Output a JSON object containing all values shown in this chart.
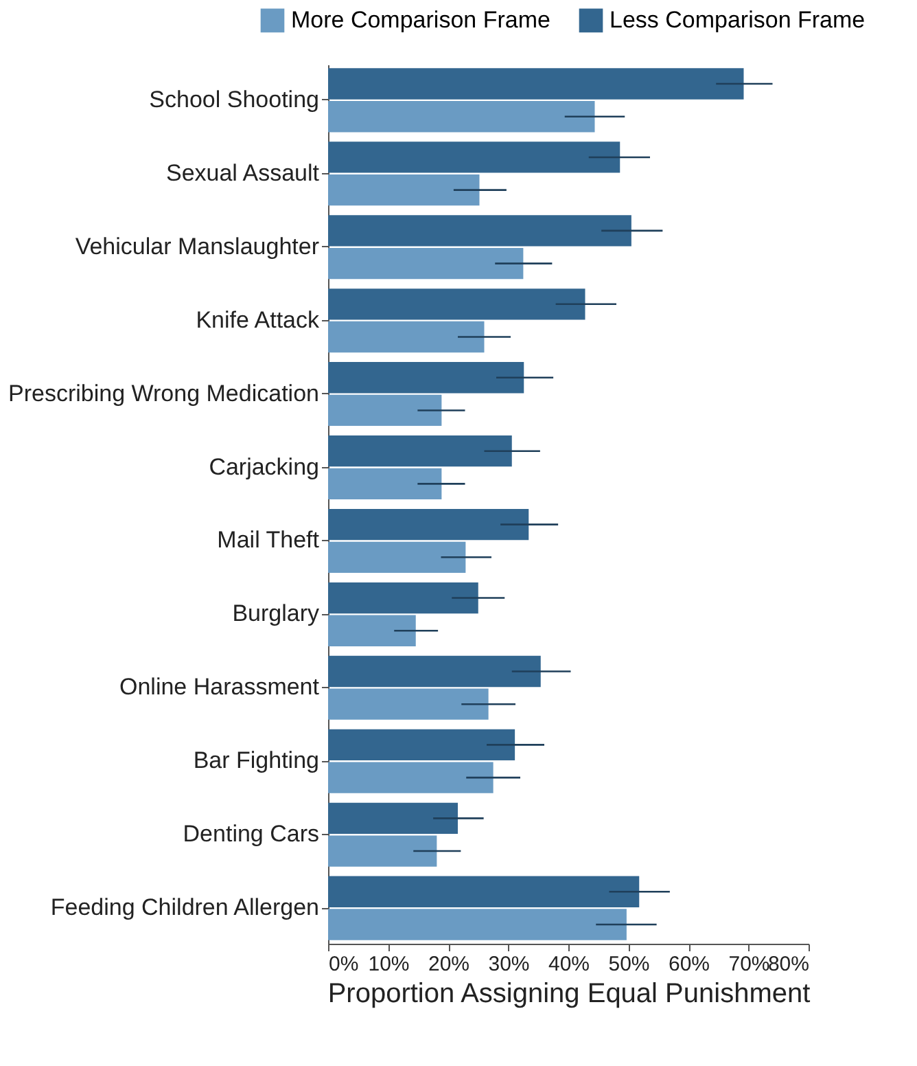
{
  "chart_data": {
    "type": "bar",
    "orientation": "horizontal",
    "xlabel": "Proportion Assigning Equal Punishment",
    "categories": [
      "School Shooting",
      "Sexual Assault",
      "Vehicular Manslaughter",
      "Knife Attack",
      "Prescribing Wrong Medication",
      "Carjacking",
      "Mail Theft",
      "Burglary",
      "Online Harassment",
      "Bar Fighting",
      "Denting Cars",
      "Feeding Children Allergen"
    ],
    "series": [
      {
        "name": "More Comparison Frame",
        "color": "#6a9bc3",
        "values": [
          44.4,
          25.2,
          32.5,
          26.0,
          18.9,
          18.9,
          22.9,
          14.6,
          26.7,
          27.5,
          18.1,
          49.7
        ],
        "errors": [
          [
            39.4,
            49.4
          ],
          [
            20.9,
            29.7
          ],
          [
            27.8,
            37.3
          ],
          [
            21.6,
            30.4
          ],
          [
            14.9,
            22.8
          ],
          [
            14.9,
            22.8
          ],
          [
            18.8,
            27.2
          ],
          [
            11.0,
            18.3
          ],
          [
            22.2,
            31.2
          ],
          [
            23.0,
            32.0
          ],
          [
            14.2,
            22.1
          ],
          [
            44.6,
            54.7
          ]
        ]
      },
      {
        "name": "Less Comparison Frame",
        "color": "#33668f",
        "values": [
          69.2,
          48.6,
          50.5,
          42.8,
          32.6,
          30.6,
          33.4,
          25.0,
          35.4,
          31.1,
          21.6,
          51.8
        ],
        "errors": [
          [
            64.6,
            74.0
          ],
          [
            43.4,
            53.6
          ],
          [
            45.5,
            55.7
          ],
          [
            37.9,
            48.0
          ],
          [
            28.0,
            37.5
          ],
          [
            26.0,
            35.3
          ],
          [
            28.7,
            38.3
          ],
          [
            20.6,
            29.4
          ],
          [
            30.6,
            40.4
          ],
          [
            26.4,
            36.0
          ],
          [
            17.5,
            25.9
          ],
          [
            46.8,
            56.9
          ]
        ]
      }
    ],
    "xlim": [
      0,
      80
    ],
    "xticks": [
      {
        "value": 0,
        "label": "0%"
      },
      {
        "value": 10,
        "label": "10%"
      },
      {
        "value": 20,
        "label": "20%"
      },
      {
        "value": 30,
        "label": "30%"
      },
      {
        "value": 40,
        "label": "40%"
      },
      {
        "value": 50,
        "label": "50%"
      },
      {
        "value": 60,
        "label": "60%"
      },
      {
        "value": 70,
        "label": "70%"
      },
      {
        "value": 80,
        "label": "80%"
      }
    ],
    "grid": false,
    "legend": "top"
  }
}
